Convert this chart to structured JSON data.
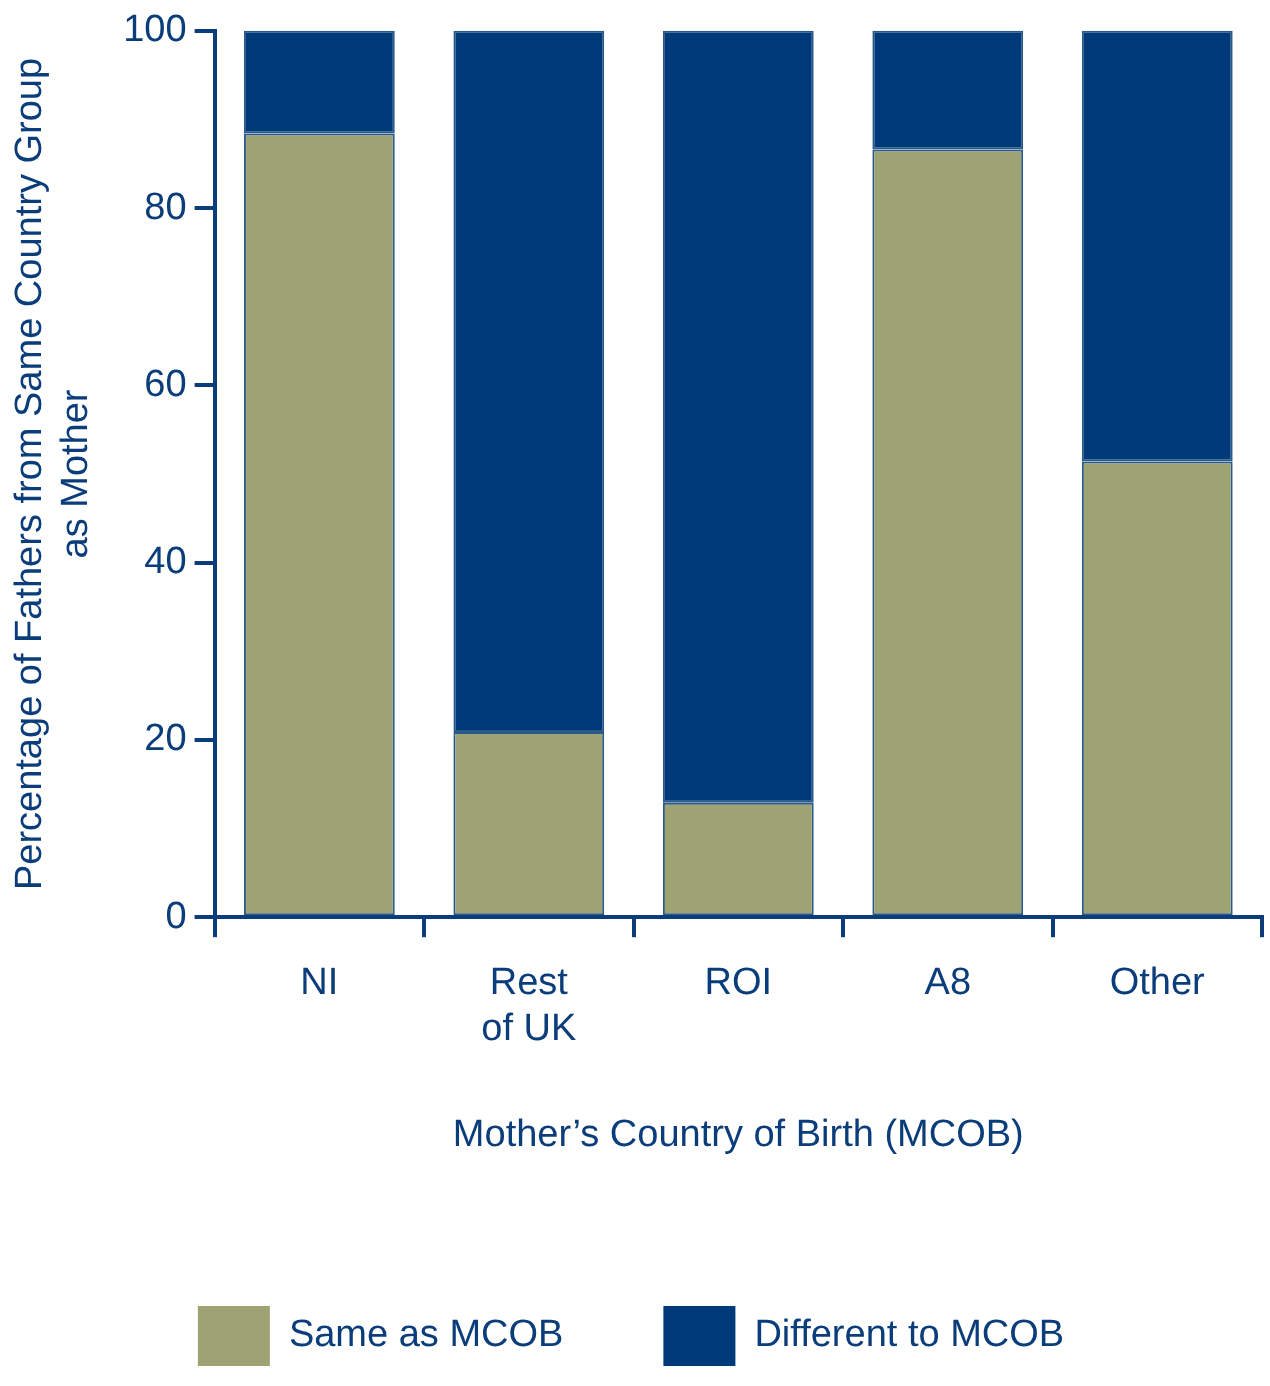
{
  "chart_data": {
    "type": "bar",
    "stacked": true,
    "xlabel": "Mother’s Country of Birth (MCOB)",
    "ylabel": "Percentage of Fathers from Same Country Group\nas Mother",
    "categories": [
      "NI",
      "Rest\nof UK",
      "ROI",
      "A8",
      "Other"
    ],
    "series": [
      {
        "name": "Same as MCOB",
        "color": "#9ea374",
        "values": [
          88.4,
          20.9,
          12.9,
          86.6,
          51.4
        ]
      },
      {
        "name": "Different to MCOB",
        "color": "#003a7a",
        "values": [
          11.6,
          79.1,
          87.1,
          13.4,
          48.6
        ]
      }
    ],
    "ylim": [
      0,
      100
    ],
    "yticks": [
      0,
      20,
      40,
      60,
      80,
      100
    ],
    "grid": false,
    "legend": "bottom"
  }
}
